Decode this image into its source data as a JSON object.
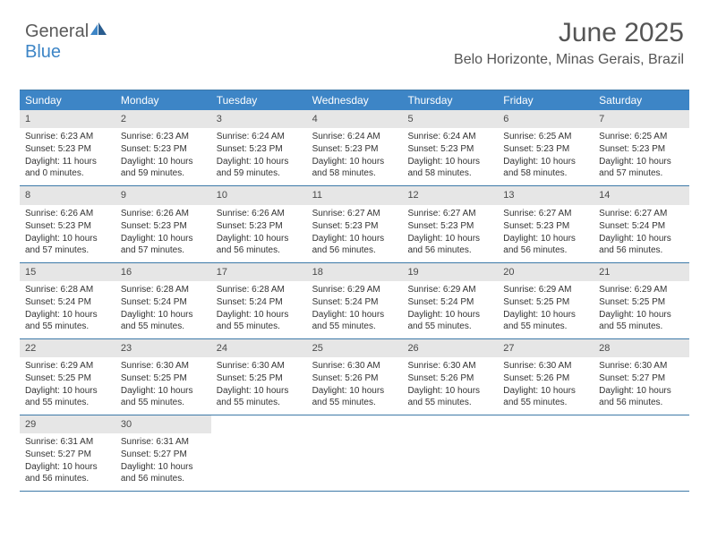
{
  "logo": {
    "part1": "General",
    "part2": "Blue"
  },
  "header": {
    "title": "June 2025",
    "subtitle": "Belo Horizonte, Minas Gerais, Brazil"
  },
  "colors": {
    "header_bg": "#3d85c6",
    "header_text": "#ffffff",
    "daynum_bg": "#e6e6e6",
    "border": "#3d79a8",
    "text": "#333333"
  },
  "day_names": [
    "Sunday",
    "Monday",
    "Tuesday",
    "Wednesday",
    "Thursday",
    "Friday",
    "Saturday"
  ],
  "weeks": [
    [
      {
        "day": 1,
        "sunrise": "Sunrise: 6:23 AM",
        "sunset": "Sunset: 5:23 PM",
        "daylight": "Daylight: 11 hours and 0 minutes."
      },
      {
        "day": 2,
        "sunrise": "Sunrise: 6:23 AM",
        "sunset": "Sunset: 5:23 PM",
        "daylight": "Daylight: 10 hours and 59 minutes."
      },
      {
        "day": 3,
        "sunrise": "Sunrise: 6:24 AM",
        "sunset": "Sunset: 5:23 PM",
        "daylight": "Daylight: 10 hours and 59 minutes."
      },
      {
        "day": 4,
        "sunrise": "Sunrise: 6:24 AM",
        "sunset": "Sunset: 5:23 PM",
        "daylight": "Daylight: 10 hours and 58 minutes."
      },
      {
        "day": 5,
        "sunrise": "Sunrise: 6:24 AM",
        "sunset": "Sunset: 5:23 PM",
        "daylight": "Daylight: 10 hours and 58 minutes."
      },
      {
        "day": 6,
        "sunrise": "Sunrise: 6:25 AM",
        "sunset": "Sunset: 5:23 PM",
        "daylight": "Daylight: 10 hours and 58 minutes."
      },
      {
        "day": 7,
        "sunrise": "Sunrise: 6:25 AM",
        "sunset": "Sunset: 5:23 PM",
        "daylight": "Daylight: 10 hours and 57 minutes."
      }
    ],
    [
      {
        "day": 8,
        "sunrise": "Sunrise: 6:26 AM",
        "sunset": "Sunset: 5:23 PM",
        "daylight": "Daylight: 10 hours and 57 minutes."
      },
      {
        "day": 9,
        "sunrise": "Sunrise: 6:26 AM",
        "sunset": "Sunset: 5:23 PM",
        "daylight": "Daylight: 10 hours and 57 minutes."
      },
      {
        "day": 10,
        "sunrise": "Sunrise: 6:26 AM",
        "sunset": "Sunset: 5:23 PM",
        "daylight": "Daylight: 10 hours and 56 minutes."
      },
      {
        "day": 11,
        "sunrise": "Sunrise: 6:27 AM",
        "sunset": "Sunset: 5:23 PM",
        "daylight": "Daylight: 10 hours and 56 minutes."
      },
      {
        "day": 12,
        "sunrise": "Sunrise: 6:27 AM",
        "sunset": "Sunset: 5:23 PM",
        "daylight": "Daylight: 10 hours and 56 minutes."
      },
      {
        "day": 13,
        "sunrise": "Sunrise: 6:27 AM",
        "sunset": "Sunset: 5:23 PM",
        "daylight": "Daylight: 10 hours and 56 minutes."
      },
      {
        "day": 14,
        "sunrise": "Sunrise: 6:27 AM",
        "sunset": "Sunset: 5:24 PM",
        "daylight": "Daylight: 10 hours and 56 minutes."
      }
    ],
    [
      {
        "day": 15,
        "sunrise": "Sunrise: 6:28 AM",
        "sunset": "Sunset: 5:24 PM",
        "daylight": "Daylight: 10 hours and 55 minutes."
      },
      {
        "day": 16,
        "sunrise": "Sunrise: 6:28 AM",
        "sunset": "Sunset: 5:24 PM",
        "daylight": "Daylight: 10 hours and 55 minutes."
      },
      {
        "day": 17,
        "sunrise": "Sunrise: 6:28 AM",
        "sunset": "Sunset: 5:24 PM",
        "daylight": "Daylight: 10 hours and 55 minutes."
      },
      {
        "day": 18,
        "sunrise": "Sunrise: 6:29 AM",
        "sunset": "Sunset: 5:24 PM",
        "daylight": "Daylight: 10 hours and 55 minutes."
      },
      {
        "day": 19,
        "sunrise": "Sunrise: 6:29 AM",
        "sunset": "Sunset: 5:24 PM",
        "daylight": "Daylight: 10 hours and 55 minutes."
      },
      {
        "day": 20,
        "sunrise": "Sunrise: 6:29 AM",
        "sunset": "Sunset: 5:25 PM",
        "daylight": "Daylight: 10 hours and 55 minutes."
      },
      {
        "day": 21,
        "sunrise": "Sunrise: 6:29 AM",
        "sunset": "Sunset: 5:25 PM",
        "daylight": "Daylight: 10 hours and 55 minutes."
      }
    ],
    [
      {
        "day": 22,
        "sunrise": "Sunrise: 6:29 AM",
        "sunset": "Sunset: 5:25 PM",
        "daylight": "Daylight: 10 hours and 55 minutes."
      },
      {
        "day": 23,
        "sunrise": "Sunrise: 6:30 AM",
        "sunset": "Sunset: 5:25 PM",
        "daylight": "Daylight: 10 hours and 55 minutes."
      },
      {
        "day": 24,
        "sunrise": "Sunrise: 6:30 AM",
        "sunset": "Sunset: 5:25 PM",
        "daylight": "Daylight: 10 hours and 55 minutes."
      },
      {
        "day": 25,
        "sunrise": "Sunrise: 6:30 AM",
        "sunset": "Sunset: 5:26 PM",
        "daylight": "Daylight: 10 hours and 55 minutes."
      },
      {
        "day": 26,
        "sunrise": "Sunrise: 6:30 AM",
        "sunset": "Sunset: 5:26 PM",
        "daylight": "Daylight: 10 hours and 55 minutes."
      },
      {
        "day": 27,
        "sunrise": "Sunrise: 6:30 AM",
        "sunset": "Sunset: 5:26 PM",
        "daylight": "Daylight: 10 hours and 55 minutes."
      },
      {
        "day": 28,
        "sunrise": "Sunrise: 6:30 AM",
        "sunset": "Sunset: 5:27 PM",
        "daylight": "Daylight: 10 hours and 56 minutes."
      }
    ],
    [
      {
        "day": 29,
        "sunrise": "Sunrise: 6:31 AM",
        "sunset": "Sunset: 5:27 PM",
        "daylight": "Daylight: 10 hours and 56 minutes."
      },
      {
        "day": 30,
        "sunrise": "Sunrise: 6:31 AM",
        "sunset": "Sunset: 5:27 PM",
        "daylight": "Daylight: 10 hours and 56 minutes."
      },
      null,
      null,
      null,
      null,
      null
    ]
  ]
}
